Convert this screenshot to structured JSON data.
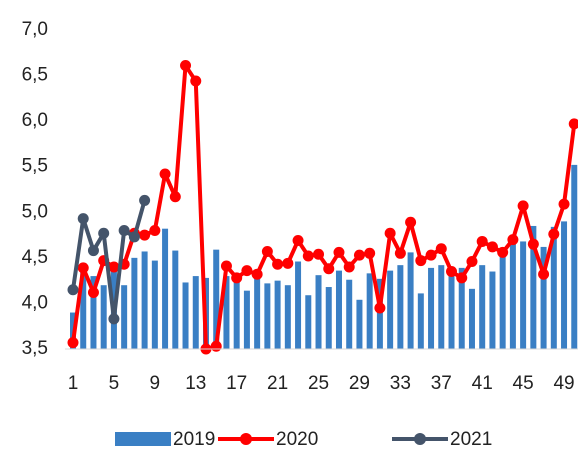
{
  "chart_data": {
    "type": "combo",
    "categories": [
      "1",
      null,
      null,
      null,
      "5",
      null,
      null,
      null,
      "9",
      null,
      null,
      null,
      "13",
      null,
      null,
      null,
      "17",
      null,
      null,
      null,
      "21",
      null,
      null,
      null,
      "25",
      null,
      null,
      null,
      "29",
      null,
      null,
      null,
      "33",
      null,
      null,
      null,
      "37",
      null,
      null,
      null,
      "41",
      null,
      null,
      null,
      "45",
      null,
      null,
      null,
      "49",
      null
    ],
    "ylim": [
      3.5,
      7.0
    ],
    "yticks": [
      {
        "value": 3.5,
        "label": "3,5"
      },
      {
        "value": 4.0,
        "label": "4,0"
      },
      {
        "value": 4.5,
        "label": "4,5"
      },
      {
        "value": 5.0,
        "label": "5,0"
      },
      {
        "value": 5.5,
        "label": "5,5"
      },
      {
        "value": 6.0,
        "label": "6,0"
      },
      {
        "value": 6.5,
        "label": "6,5"
      },
      {
        "value": 7.0,
        "label": "7,0"
      }
    ],
    "legend": "bottom",
    "series": [
      {
        "name": "2019",
        "type": "bar",
        "color": "#3a7fc4",
        "values": [
          3.9,
          4.4,
          4.3,
          4.2,
          4.4,
          4.2,
          4.5,
          4.57,
          4.47,
          4.82,
          4.58,
          4.23,
          4.3,
          4.28,
          4.59,
          4.3,
          4.28,
          4.14,
          4.3,
          4.22,
          4.25,
          4.2,
          4.46,
          4.09,
          4.31,
          4.18,
          4.36,
          4.26,
          4.04,
          4.33,
          4.27,
          4.36,
          4.42,
          4.56,
          4.11,
          4.39,
          4.42,
          4.37,
          4.39,
          4.16,
          4.42,
          4.35,
          4.56,
          4.66,
          4.68,
          4.85,
          4.62,
          4.84,
          4.9,
          5.52
        ]
      },
      {
        "name": "2020",
        "type": "line",
        "color": "#ff0000",
        "values": [
          3.57,
          4.39,
          4.12,
          4.47,
          4.4,
          4.43,
          4.77,
          4.75,
          4.8,
          5.42,
          5.17,
          6.61,
          6.44,
          3.5,
          3.53,
          4.41,
          4.28,
          4.36,
          4.32,
          4.57,
          4.43,
          4.44,
          4.69,
          4.52,
          4.54,
          4.38,
          4.56,
          4.4,
          4.53,
          4.55,
          3.95,
          4.77,
          4.55,
          4.89,
          4.47,
          4.53,
          4.6,
          4.35,
          4.28,
          4.46,
          4.68,
          4.62,
          4.56,
          4.7,
          5.07,
          4.65,
          4.32,
          4.76,
          5.09,
          5.97
        ]
      },
      {
        "name": "2021",
        "type": "line",
        "color": "#44546a",
        "values": [
          4.15,
          4.93,
          4.58,
          4.77,
          3.83,
          4.8,
          4.73,
          5.13,
          null,
          null,
          null,
          null,
          null,
          null,
          null,
          null,
          null,
          null,
          null,
          null,
          null,
          null,
          null,
          null,
          null,
          null,
          null,
          null,
          null,
          null,
          null,
          null,
          null,
          null,
          null,
          null,
          null,
          null,
          null,
          null,
          null,
          null,
          null,
          null,
          null,
          null,
          null,
          null,
          null,
          null
        ]
      }
    ]
  }
}
